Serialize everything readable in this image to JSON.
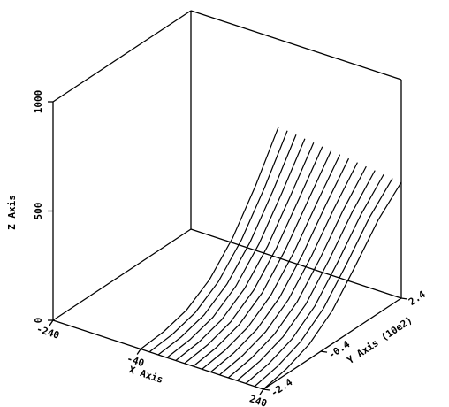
{
  "chart_data": {
    "type": "line3d",
    "xlabel": "X Axis",
    "ylabel": "Y Axis (10e2)",
    "zlabel": "Z Axis",
    "xlim": [
      -240,
      240
    ],
    "ylim": [
      -2.4,
      2.4
    ],
    "zlim": [
      0,
      1000
    ],
    "xticks": [
      -240,
      -40,
      240
    ],
    "yticks": [
      -2.4,
      -0.4,
      2.4
    ],
    "zticks": [
      0,
      500,
      1000
    ],
    "color": "#000000",
    "y": [
      -2.4,
      -1.6,
      -0.8,
      0,
      0.8,
      1.6,
      2.4
    ],
    "series": [
      {
        "x": -40,
        "values": [
          0,
          10,
          40,
          110,
          230,
          400,
          600
        ]
      },
      {
        "x": -20,
        "values": [
          0,
          11,
          42,
          113,
          234,
          402,
          595
        ]
      },
      {
        "x": 0,
        "values": [
          0,
          12,
          44,
          116,
          238,
          404,
          590
        ]
      },
      {
        "x": 20,
        "values": [
          0,
          13,
          46,
          119,
          242,
          406,
          585
        ]
      },
      {
        "x": 40,
        "values": [
          0,
          14,
          48,
          122,
          246,
          408,
          580
        ]
      },
      {
        "x": 60,
        "values": [
          0,
          15,
          50,
          125,
          250,
          410,
          575
        ]
      },
      {
        "x": 80,
        "values": [
          0,
          16,
          52,
          128,
          254,
          412,
          570
        ]
      },
      {
        "x": 100,
        "values": [
          0,
          17,
          54,
          131,
          258,
          414,
          565
        ]
      },
      {
        "x": 120,
        "values": [
          0,
          18,
          56,
          134,
          262,
          416,
          560
        ]
      },
      {
        "x": 140,
        "values": [
          0,
          19,
          58,
          137,
          266,
          418,
          555
        ]
      },
      {
        "x": 160,
        "values": [
          0,
          20,
          60,
          140,
          270,
          420,
          550
        ]
      },
      {
        "x": 180,
        "values": [
          0,
          21,
          62,
          143,
          274,
          422,
          545
        ]
      },
      {
        "x": 200,
        "values": [
          0,
          22,
          64,
          146,
          278,
          424,
          540
        ]
      },
      {
        "x": 220,
        "values": [
          0,
          23,
          66,
          149,
          282,
          426,
          535
        ]
      },
      {
        "x": 240,
        "values": [
          0,
          24,
          68,
          152,
          286,
          428,
          530
        ]
      }
    ]
  }
}
